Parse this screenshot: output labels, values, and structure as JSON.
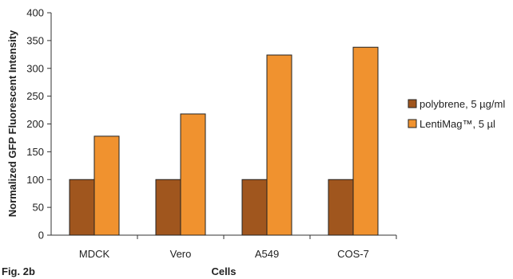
{
  "figure_label": "Fig. 2b",
  "chart_data": {
    "type": "bar",
    "categories": [
      "MDCK",
      "Vero",
      "A549",
      "COS-7"
    ],
    "series": [
      {
        "name": "polybrene, 5 µg/ml",
        "values": [
          100,
          100,
          100,
          100
        ],
        "color": "#A0561E"
      },
      {
        "name": "LentiMag™, 5 µl",
        "values": [
          178,
          218,
          324,
          338
        ],
        "color": "#F0922F"
      }
    ],
    "xlabel": "Cells",
    "ylabel": "Normalized GFP Fluorescent Intensity",
    "ylim": [
      0,
      400
    ],
    "yticks": [
      0,
      50,
      100,
      150,
      200,
      250,
      300,
      350,
      400
    ],
    "grid": false,
    "legend": "right"
  }
}
